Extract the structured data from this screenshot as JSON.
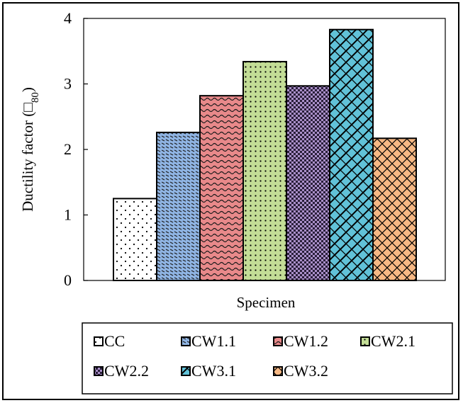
{
  "chart_data": {
    "type": "bar",
    "title": "",
    "xlabel": "Specimen",
    "ylabel": "Ductility factor (□",
    "ylabel_subscript": "80",
    "ylabel_close": ")",
    "ylim": [
      0,
      4
    ],
    "yticks": [
      0,
      1,
      2,
      3,
      4
    ],
    "grid": false,
    "legend_position": "bottom",
    "series": [
      {
        "name": "CC",
        "value": 1.25,
        "color": "#ffffff",
        "pattern": "dots"
      },
      {
        "name": "CW1.1",
        "value": 2.26,
        "color": "#8fb4e3",
        "pattern": "dashes"
      },
      {
        "name": "CW1.2",
        "value": 2.82,
        "color": "#e8898a",
        "pattern": "waves"
      },
      {
        "name": "CW2.1",
        "value": 3.34,
        "color": "#c3dd96",
        "pattern": "dense-dots"
      },
      {
        "name": "CW2.2",
        "value": 2.97,
        "color": "#a98fc8",
        "pattern": "checks"
      },
      {
        "name": "CW3.1",
        "value": 3.83,
        "color": "#61c2d8",
        "pattern": "lattice"
      },
      {
        "name": "CW3.2",
        "value": 2.17,
        "color": "#f7b884",
        "pattern": "crosshatch"
      }
    ]
  }
}
